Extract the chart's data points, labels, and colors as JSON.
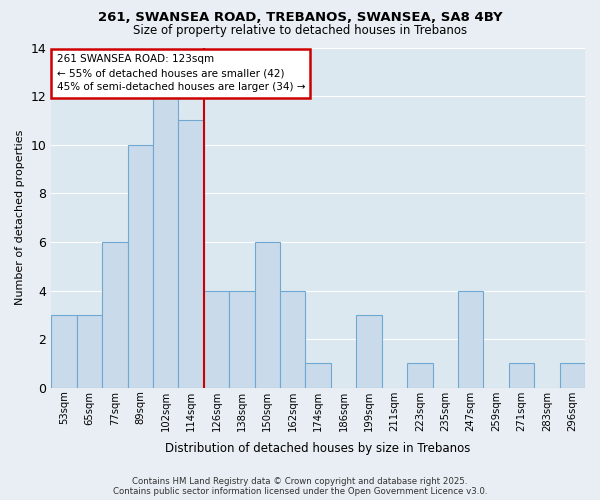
{
  "title1": "261, SWANSEA ROAD, TREBANOS, SWANSEA, SA8 4BY",
  "title2": "Size of property relative to detached houses in Trebanos",
  "xlabel": "Distribution of detached houses by size in Trebanos",
  "ylabel": "Number of detached properties",
  "categories": [
    "53sqm",
    "65sqm",
    "77sqm",
    "89sqm",
    "102sqm",
    "114sqm",
    "126sqm",
    "138sqm",
    "150sqm",
    "162sqm",
    "174sqm",
    "186sqm",
    "199sqm",
    "211sqm",
    "223sqm",
    "235sqm",
    "247sqm",
    "259sqm",
    "271sqm",
    "283sqm",
    "296sqm"
  ],
  "values": [
    3,
    3,
    6,
    10,
    12,
    11,
    4,
    4,
    6,
    4,
    1,
    0,
    3,
    0,
    1,
    0,
    4,
    0,
    1,
    0,
    1
  ],
  "bar_color": "#c9daea",
  "bar_edgecolor": "#6fa8d0",
  "vline_color": "#cc0000",
  "annotation_title": "261 SWANSEA ROAD: 123sqm",
  "annotation_line1": "← 55% of detached houses are smaller (42)",
  "annotation_line2": "45% of semi-detached houses are larger (34) →",
  "annotation_box_edgecolor": "#cc0000",
  "ylim_max": 14,
  "yticks": [
    0,
    2,
    4,
    6,
    8,
    10,
    12,
    14
  ],
  "footer1": "Contains HM Land Registry data © Crown copyright and database right 2025.",
  "footer2": "Contains public sector information licensed under the Open Government Licence v3.0.",
  "bg_color": "#e8eef4",
  "plot_bg_color": "#dce8f0",
  "grid_color": "#ffffff"
}
